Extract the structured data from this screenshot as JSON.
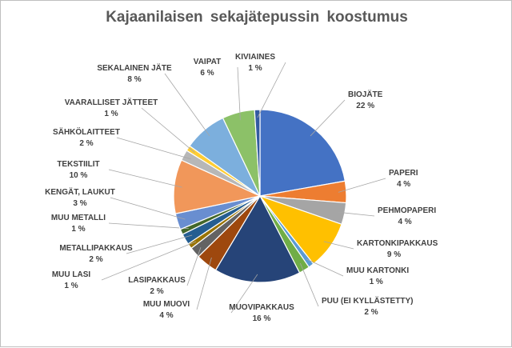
{
  "chart_data": {
    "type": "pie",
    "title": "Kajaanilaisen  sekajätepussin  koostumus",
    "slices": [
      {
        "name": "BIOJÄTE",
        "value": 22,
        "value_label": "22 %",
        "color": "#4472c4"
      },
      {
        "name": "PAPERI",
        "value": 4,
        "value_label": "4 %",
        "color": "#ed7d31"
      },
      {
        "name": "PEHMOPAPERI",
        "value": 4,
        "value_label": "4 %",
        "color": "#a5a5a5"
      },
      {
        "name": "KARTONKIPAKKAUS",
        "value": 9,
        "value_label": "9 %",
        "color": "#ffc000"
      },
      {
        "name": "MUU KARTONKI",
        "value": 1,
        "value_label": "1 %",
        "color": "#5b9bd5"
      },
      {
        "name": "PUU (EI KYLLÄSTETTY)",
        "value": 2,
        "value_label": "2 %",
        "color": "#70ad47"
      },
      {
        "name": "MUOVIPAKKAUS",
        "value": 16,
        "value_label": "16 %",
        "color": "#264478"
      },
      {
        "name": "MUU MUOVI",
        "value": 4,
        "value_label": "4 %",
        "color": "#9e480e"
      },
      {
        "name": "LASIPAKKAUS",
        "value": 2,
        "value_label": "2 %",
        "color": "#636363"
      },
      {
        "name": "MUU LASI",
        "value": 1,
        "value_label": "1 %",
        "color": "#997300"
      },
      {
        "name": "METALLIPAKKAUS",
        "value": 2,
        "value_label": "2 %",
        "color": "#255e91"
      },
      {
        "name": "MUU METALLI",
        "value": 1,
        "value_label": "1 %",
        "color": "#43682b"
      },
      {
        "name": "KENGÄT, LAUKUT",
        "value": 3,
        "value_label": "3 %",
        "color": "#698ed0"
      },
      {
        "name": "TEKSTIILIT",
        "value": 10,
        "value_label": "10 %",
        "color": "#f1975a"
      },
      {
        "name": "SÄHKÖLAITTEET",
        "value": 2,
        "value_label": "2 %",
        "color": "#b7b7b7"
      },
      {
        "name": "VAARALLISET JÄTTEET",
        "value": 1,
        "value_label": "1 %",
        "color": "#ffcd33"
      },
      {
        "name": "SEKALAINEN JÄTE",
        "value": 8,
        "value_label": "8 %",
        "color": "#7cafdd"
      },
      {
        "name": "VAIPAT",
        "value": 6,
        "value_label": "6 %",
        "color": "#8cc168"
      },
      {
        "name": "KIVIAINES",
        "value": 1,
        "value_label": "1 %",
        "color": "#335aa1"
      }
    ],
    "legend": "none",
    "labels": "outside with leader lines"
  }
}
